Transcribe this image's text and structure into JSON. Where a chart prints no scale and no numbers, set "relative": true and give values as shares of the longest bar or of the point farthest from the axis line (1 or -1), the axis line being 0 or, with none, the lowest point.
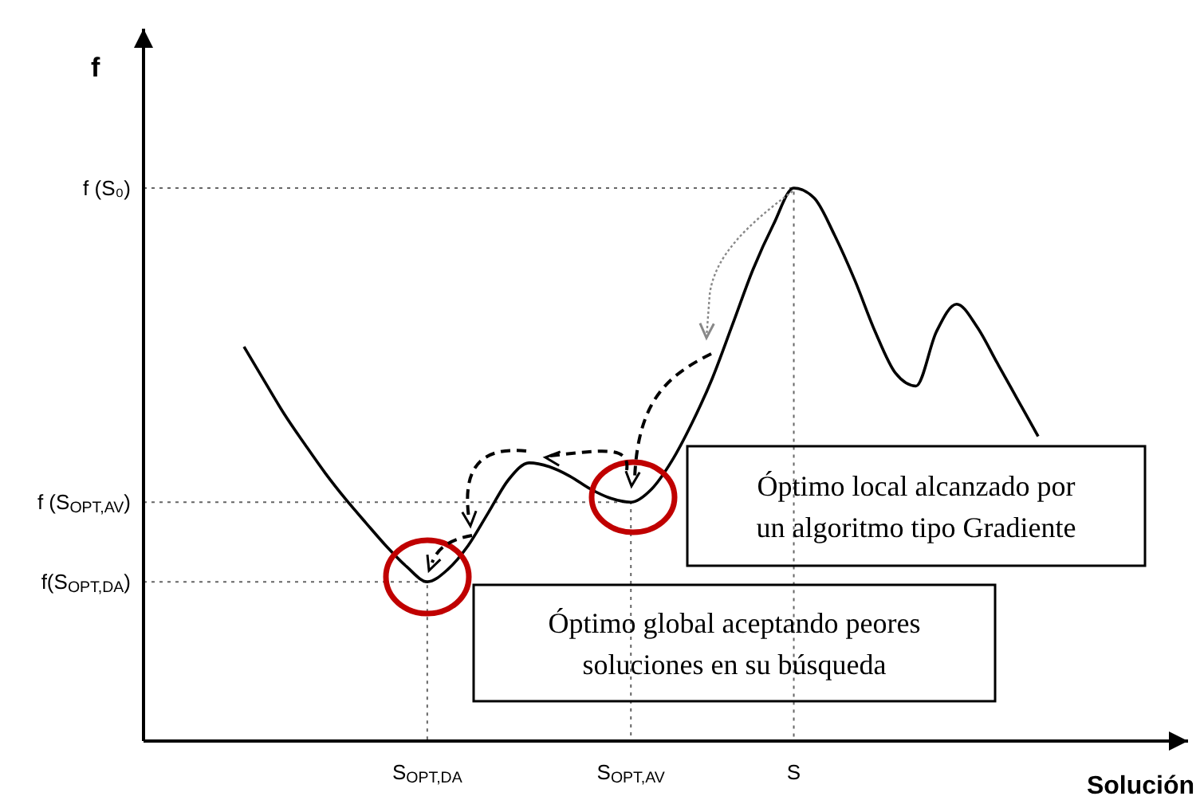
{
  "chart_data": {
    "type": "line",
    "xlabel": "Solución",
    "relative": true,
    "categories": [
      null,
      null,
      null,
      null,
      null,
      null,
      null,
      null,
      null,
      "S$_{OPT,DA}$",
      null,
      null,
      null,
      null,
      null,
      null,
      null,
      null,
      null,
      "S$_{OPT,AV}$",
      null,
      null,
      null,
      null,
      null,
      null,
      null,
      "S",
      null,
      null,
      null,
      null,
      null,
      null,
      null,
      null,
      null,
      null,
      null,
      null
    ],
    "marker": "none",
    "line_style": "solid",
    "ref_lines": [
      {
        "axis": "y",
        "value": 0.288,
        "label": "f(S$_{OPT,DA}$)"
      },
      {
        "axis": "y",
        "value": 0.432,
        "label": "f (S$_{OPT,AV}$)"
      },
      {
        "axis": "y",
        "value": 1,
        "label": "f (S₀)"
      }
    ],
    "series": [
      {
        "color": "#000000",
        "values": [
          0.713,
          0.651,
          0.59,
          0.536,
          0.484,
          0.437,
          0.394,
          0.352,
          0.315,
          0.288,
          0.31,
          0.353,
          0.413,
          0.473,
          0.503,
          0.496,
          0.479,
          0.456,
          0.439,
          0.432,
          0.455,
          0.506,
          0.575,
          0.656,
          0.754,
          0.853,
          0.934,
          1,
          0.982,
          0.915,
          0.833,
          0.74,
          0.665,
          0.642,
          0.74,
          0.79,
          0.749,
          0.683,
          0.617,
          0.551
        ]
      }
    ],
    "annotations": [
      "Óptimo local alcanzado por\nun algoritmo tipo Gradiente",
      "Óptimo global aceptando peores\nsoluciones en su búsqueda",
      "f"
    ]
  }
}
